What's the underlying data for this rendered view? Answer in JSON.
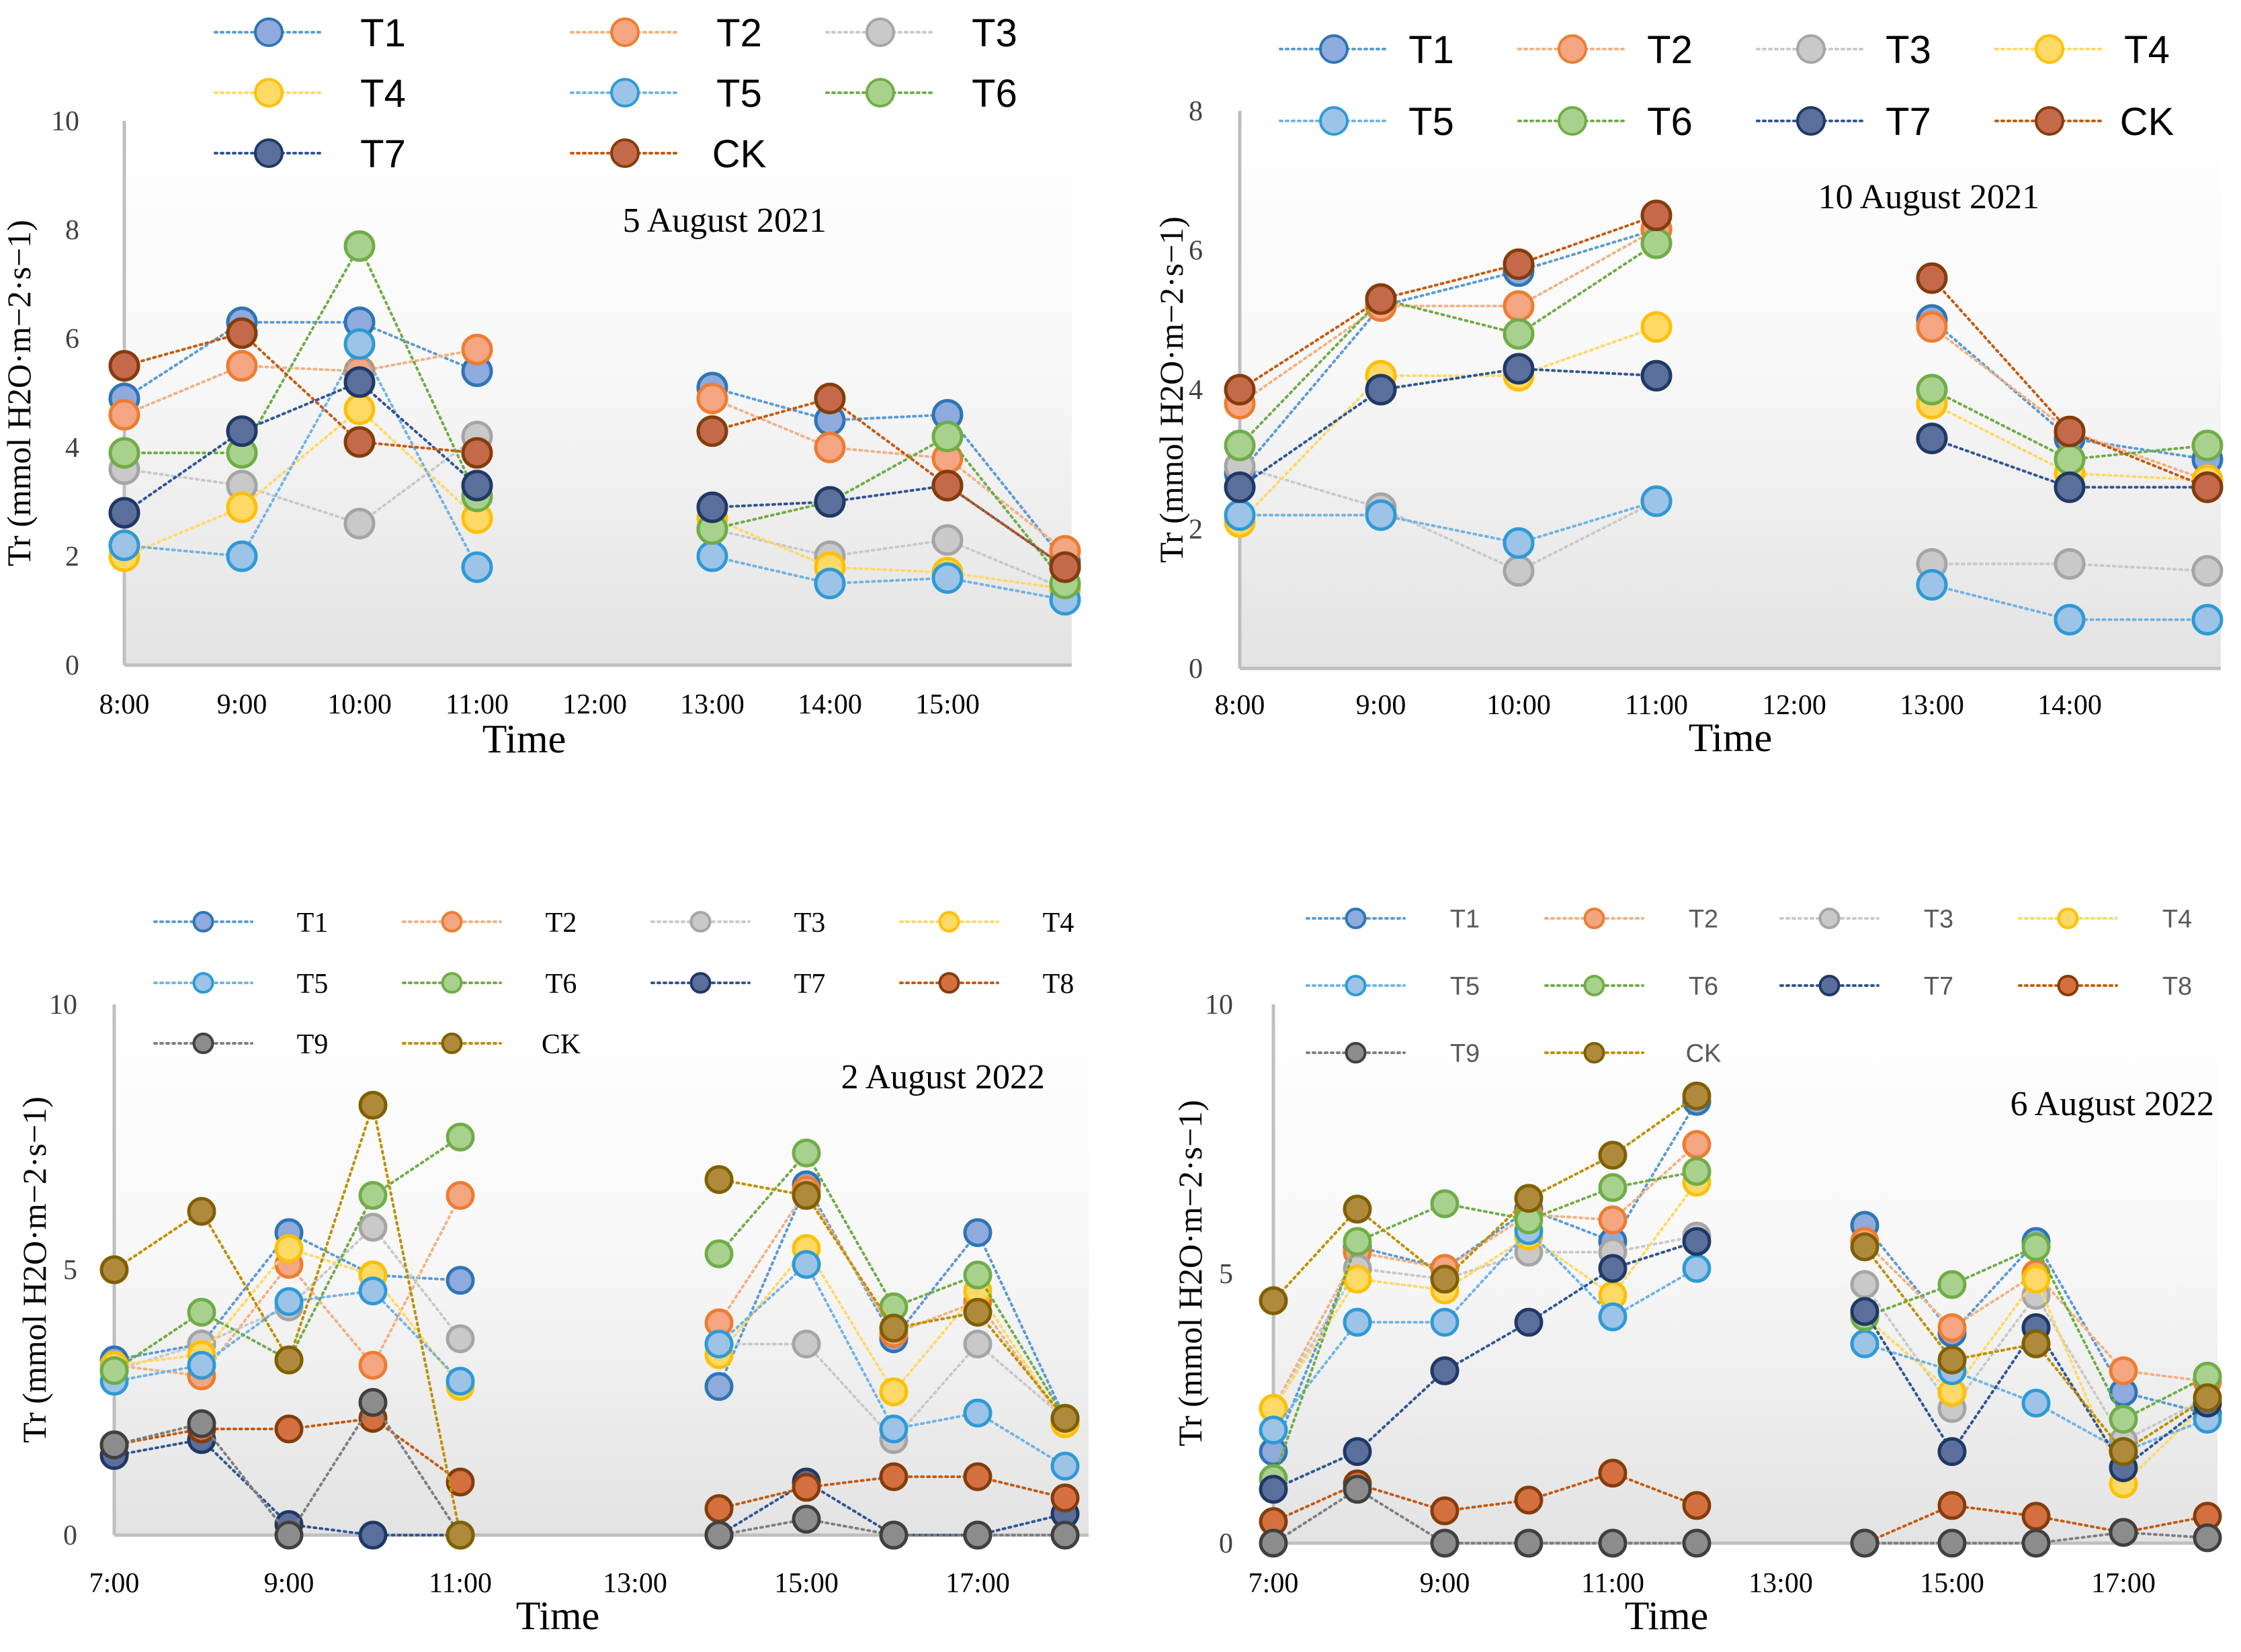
{
  "chart_data": [
    {
      "type": "line",
      "title": "5 August 2021",
      "xlabel": "Time",
      "ylabel": "Tr (mmol H2O·m−2·s−1)",
      "ylim": [
        0,
        10
      ],
      "yticks": [
        "0",
        "2",
        "4",
        "6",
        "8",
        "10"
      ],
      "categories": [
        "8:00",
        "9:00",
        "10:00",
        "11:00",
        "12:00",
        "13:00",
        "14:00",
        "15:00",
        ""
      ],
      "series": [
        {
          "name": "T1",
          "color": "#5b9bd5",
          "fill": "#8faadc",
          "edge": "#2e75b6",
          "values": [
            4.9,
            6.3,
            6.3,
            5.4,
            null,
            5.1,
            4.5,
            4.6,
            1.9
          ]
        },
        {
          "name": "T2",
          "color": "#f4b183",
          "fill": "#f4a582",
          "edge": "#ed7d31",
          "values": [
            4.6,
            5.5,
            5.4,
            5.8,
            null,
            4.9,
            4.0,
            3.8,
            2.1
          ]
        },
        {
          "name": "T3",
          "color": "#c9c9c9",
          "fill": "#c9c9c9",
          "edge": "#a5a5a5",
          "values": [
            3.6,
            3.3,
            2.6,
            4.2,
            null,
            2.5,
            2.0,
            2.3,
            1.4
          ]
        },
        {
          "name": "T4",
          "color": "#ffd966",
          "fill": "#ffd966",
          "edge": "#ffc000",
          "values": [
            2.0,
            2.9,
            4.7,
            2.7,
            null,
            2.7,
            1.8,
            1.7,
            1.4
          ]
        },
        {
          "name": "T5",
          "color": "#70b4e6",
          "fill": "#9dc3e6",
          "edge": "#2e9ad6",
          "values": [
            2.2,
            2.0,
            5.9,
            1.8,
            null,
            2.0,
            1.5,
            1.6,
            1.2
          ]
        },
        {
          "name": "T6",
          "color": "#70ad47",
          "fill": "#a9d18e",
          "edge": "#70ad47",
          "values": [
            3.9,
            3.9,
            7.7,
            3.1,
            null,
            2.5,
            3.0,
            4.2,
            1.5
          ]
        },
        {
          "name": "T7",
          "color": "#2f5597",
          "fill": "#5a6f9b",
          "edge": "#203864",
          "values": [
            2.8,
            4.3,
            5.2,
            3.3,
            null,
            2.9,
            3.0,
            3.3,
            1.8
          ]
        },
        {
          "name": "CK",
          "color": "#c55a11",
          "fill": "#c46a4a",
          "edge": "#843c0c",
          "values": [
            5.5,
            6.1,
            4.1,
            3.9,
            null,
            4.3,
            4.9,
            3.3,
            1.8
          ]
        }
      ]
    },
    {
      "type": "line",
      "title": "10 August 2021",
      "xlabel": "Time",
      "ylabel": "Tr (mmol H2O·m−2·s−1)",
      "ylim": [
        0,
        8
      ],
      "yticks": [
        "0",
        "2",
        "4",
        "6",
        "8"
      ],
      "categories": [
        "8:00",
        "9:00",
        "10:00",
        "11:00",
        "12:00",
        "13:00",
        "14:00",
        ""
      ],
      "series": [
        {
          "name": "T1",
          "color": "#5b9bd5",
          "fill": "#8faadc",
          "edge": "#2e75b6",
          "values": [
            2.8,
            5.2,
            5.7,
            6.3,
            null,
            5.0,
            3.3,
            3.0
          ]
        },
        {
          "name": "T2",
          "color": "#f4b183",
          "fill": "#f4a582",
          "edge": "#ed7d31",
          "values": [
            3.8,
            5.2,
            5.2,
            6.3,
            null,
            4.9,
            3.4,
            2.7
          ]
        },
        {
          "name": "T3",
          "color": "#c9c9c9",
          "fill": "#c9c9c9",
          "edge": "#a5a5a5",
          "values": [
            2.9,
            2.3,
            1.4,
            2.4,
            null,
            1.5,
            1.5,
            1.4
          ]
        },
        {
          "name": "T4",
          "color": "#ffd966",
          "fill": "#ffd966",
          "edge": "#ffc000",
          "values": [
            2.1,
            4.2,
            4.2,
            4.9,
            null,
            3.8,
            2.8,
            2.7
          ]
        },
        {
          "name": "T5",
          "color": "#70b4e6",
          "fill": "#9dc3e6",
          "edge": "#2e9ad6",
          "values": [
            2.2,
            2.2,
            1.8,
            2.4,
            null,
            1.2,
            0.7,
            0.7
          ]
        },
        {
          "name": "T6",
          "color": "#70ad47",
          "fill": "#a9d18e",
          "edge": "#70ad47",
          "values": [
            3.2,
            5.3,
            4.8,
            6.1,
            null,
            4.0,
            3.0,
            3.2
          ]
        },
        {
          "name": "T7",
          "color": "#2f5597",
          "fill": "#5a6f9b",
          "edge": "#203864",
          "values": [
            2.6,
            4.0,
            4.3,
            4.2,
            null,
            3.3,
            2.6,
            2.6
          ]
        },
        {
          "name": "CK",
          "color": "#c55a11",
          "fill": "#c46a4a",
          "edge": "#843c0c",
          "values": [
            4.0,
            5.3,
            5.8,
            6.5,
            null,
            5.6,
            3.4,
            2.6
          ]
        }
      ]
    },
    {
      "type": "line",
      "title": "2 August 2022",
      "xlabel": "Time",
      "ylabel": "Tr (mmol H2O·m−2·s−1)",
      "ylim": [
        0,
        10
      ],
      "yticks": [
        "0",
        "5",
        "10"
      ],
      "categories": [
        "7:00",
        "8:00",
        "9:00",
        "10:00",
        "11:00",
        "12:00",
        "13:00",
        "14:00",
        "15:00",
        "16:00",
        "17:00",
        "18:00"
      ],
      "xticks": [
        "7:00",
        "9:00",
        "11:00",
        "13:00",
        "15:00",
        "17:00"
      ],
      "series": [
        {
          "name": "T1",
          "color": "#5b9bd5",
          "fill": "#8faadc",
          "edge": "#2e75b6",
          "values": [
            3.3,
            3.6,
            5.7,
            4.9,
            4.8,
            null,
            null,
            2.8,
            6.6,
            3.7,
            5.7,
            2.2
          ]
        },
        {
          "name": "T2",
          "color": "#f4b183",
          "fill": "#f4a582",
          "edge": "#ed7d31",
          "values": [
            3.2,
            3.0,
            5.1,
            3.2,
            6.4,
            null,
            null,
            4.0,
            6.5,
            3.8,
            4.4,
            2.1
          ]
        },
        {
          "name": "T3",
          "color": "#c9c9c9",
          "fill": "#c9c9c9",
          "edge": "#a5a5a5",
          "values": [
            3.1,
            3.6,
            4.3,
            5.8,
            3.7,
            null,
            null,
            3.6,
            3.6,
            1.8,
            3.6,
            2.2
          ]
        },
        {
          "name": "T4",
          "color": "#ffd966",
          "fill": "#ffd966",
          "edge": "#ffc000",
          "values": [
            3.2,
            3.4,
            5.4,
            4.9,
            2.8,
            null,
            null,
            3.4,
            5.4,
            2.7,
            4.6,
            2.1
          ]
        },
        {
          "name": "T5",
          "color": "#70b4e6",
          "fill": "#9dc3e6",
          "edge": "#2e9ad6",
          "values": [
            2.9,
            3.2,
            4.4,
            4.6,
            2.9,
            null,
            null,
            3.6,
            5.1,
            2.0,
            2.3,
            1.3
          ]
        },
        {
          "name": "T6",
          "color": "#70ad47",
          "fill": "#a9d18e",
          "edge": "#70ad47",
          "values": [
            3.1,
            4.2,
            3.3,
            6.4,
            7.5,
            null,
            null,
            5.3,
            7.2,
            4.3,
            4.9,
            2.2
          ]
        },
        {
          "name": "T7",
          "color": "#2f5597",
          "fill": "#5a6f9b",
          "edge": "#203864",
          "values": [
            1.5,
            1.8,
            0.2,
            0.0,
            0.0,
            null,
            null,
            0.0,
            1.0,
            0.0,
            0.0,
            0.4
          ]
        },
        {
          "name": "T8",
          "color": "#c55a11",
          "fill": "#d4703f",
          "edge": "#843c0c",
          "values": [
            1.7,
            2.0,
            2.0,
            2.2,
            1.0,
            null,
            null,
            0.5,
            0.9,
            1.1,
            1.1,
            0.7
          ]
        },
        {
          "name": "T9",
          "color": "#7f7f7f",
          "fill": "#8c8c8c",
          "edge": "#404040",
          "values": [
            1.7,
            2.1,
            0.0,
            2.5,
            0.0,
            null,
            null,
            0.0,
            0.3,
            0.0,
            0.0,
            0.0
          ]
        },
        {
          "name": "CK",
          "color": "#bf9000",
          "fill": "#b08a3c",
          "edge": "#7f6000",
          "values": [
            5.0,
            6.1,
            3.3,
            8.1,
            0.0,
            null,
            null,
            6.7,
            6.4,
            3.9,
            4.2,
            2.2
          ]
        }
      ]
    },
    {
      "type": "line",
      "title": "6 August 2022",
      "xlabel": "Time",
      "ylabel": "Tr (mmol H2O·m−2·s−1)",
      "ylim": [
        0,
        10
      ],
      "yticks": [
        "0",
        "5",
        "10"
      ],
      "categories": [
        "7:00",
        "8:00",
        "9:00",
        "10:00",
        "11:00",
        "12:00",
        "13:00",
        "14:00",
        "15:00",
        "16:00",
        "17:00",
        "18:00"
      ],
      "xticks": [
        "7:00",
        "9:00",
        "11:00",
        "13:00",
        "15:00",
        "17:00"
      ],
      "series": [
        {
          "name": "T1",
          "color": "#5b9bd5",
          "fill": "#8faadc",
          "edge": "#2e75b6",
          "values": [
            1.7,
            5.5,
            5.1,
            6.2,
            5.6,
            8.2,
            null,
            5.9,
            3.9,
            5.6,
            2.8,
            2.4
          ]
        },
        {
          "name": "T2",
          "color": "#f4b183",
          "fill": "#f4a582",
          "edge": "#ed7d31",
          "values": [
            2.5,
            5.4,
            5.1,
            6.1,
            6.0,
            7.4,
            null,
            5.6,
            4.0,
            5.0,
            3.2,
            3.0
          ]
        },
        {
          "name": "T3",
          "color": "#c9c9c9",
          "fill": "#c9c9c9",
          "edge": "#a5a5a5",
          "values": [
            2.5,
            5.1,
            4.9,
            5.4,
            5.4,
            5.7,
            null,
            4.8,
            2.5,
            4.6,
            1.9,
            2.7
          ]
        },
        {
          "name": "T4",
          "color": "#ffd966",
          "fill": "#ffd966",
          "edge": "#ffc000",
          "values": [
            2.5,
            4.9,
            4.7,
            5.7,
            4.6,
            6.7,
            null,
            4.2,
            2.8,
            4.9,
            1.1,
            2.6
          ]
        },
        {
          "name": "T5",
          "color": "#70b4e6",
          "fill": "#9dc3e6",
          "edge": "#2e9ad6",
          "values": [
            2.1,
            4.1,
            4.1,
            5.8,
            4.2,
            5.1,
            null,
            3.7,
            3.2,
            2.6,
            1.7,
            2.3
          ]
        },
        {
          "name": "T6",
          "color": "#70ad47",
          "fill": "#a9d18e",
          "edge": "#70ad47",
          "values": [
            1.2,
            5.6,
            6.3,
            6.0,
            6.6,
            6.9,
            null,
            4.2,
            4.8,
            5.5,
            2.3,
            3.1
          ]
        },
        {
          "name": "T7",
          "color": "#2f5597",
          "fill": "#5a6f9b",
          "edge": "#203864",
          "values": [
            1.0,
            1.7,
            3.2,
            4.1,
            5.1,
            5.6,
            null,
            4.3,
            1.7,
            4.0,
            1.4,
            2.6
          ]
        },
        {
          "name": "T8",
          "color": "#c55a11",
          "fill": "#d4703f",
          "edge": "#843c0c",
          "values": [
            0.4,
            1.1,
            0.6,
            0.8,
            1.3,
            0.7,
            null,
            0.0,
            0.7,
            0.5,
            0.2,
            0.5
          ]
        },
        {
          "name": "T9",
          "color": "#7f7f7f",
          "fill": "#8c8c8c",
          "edge": "#404040",
          "values": [
            0.0,
            1.0,
            0.0,
            0.0,
            0.0,
            0.0,
            null,
            0.0,
            0.0,
            0.0,
            0.2,
            0.1
          ]
        },
        {
          "name": "CK",
          "color": "#bf9000",
          "fill": "#b08a3c",
          "edge": "#7f6000",
          "values": [
            4.5,
            6.2,
            4.9,
            6.4,
            7.2,
            8.3,
            null,
            5.5,
            3.4,
            3.7,
            1.7,
            2.7
          ]
        }
      ]
    }
  ]
}
